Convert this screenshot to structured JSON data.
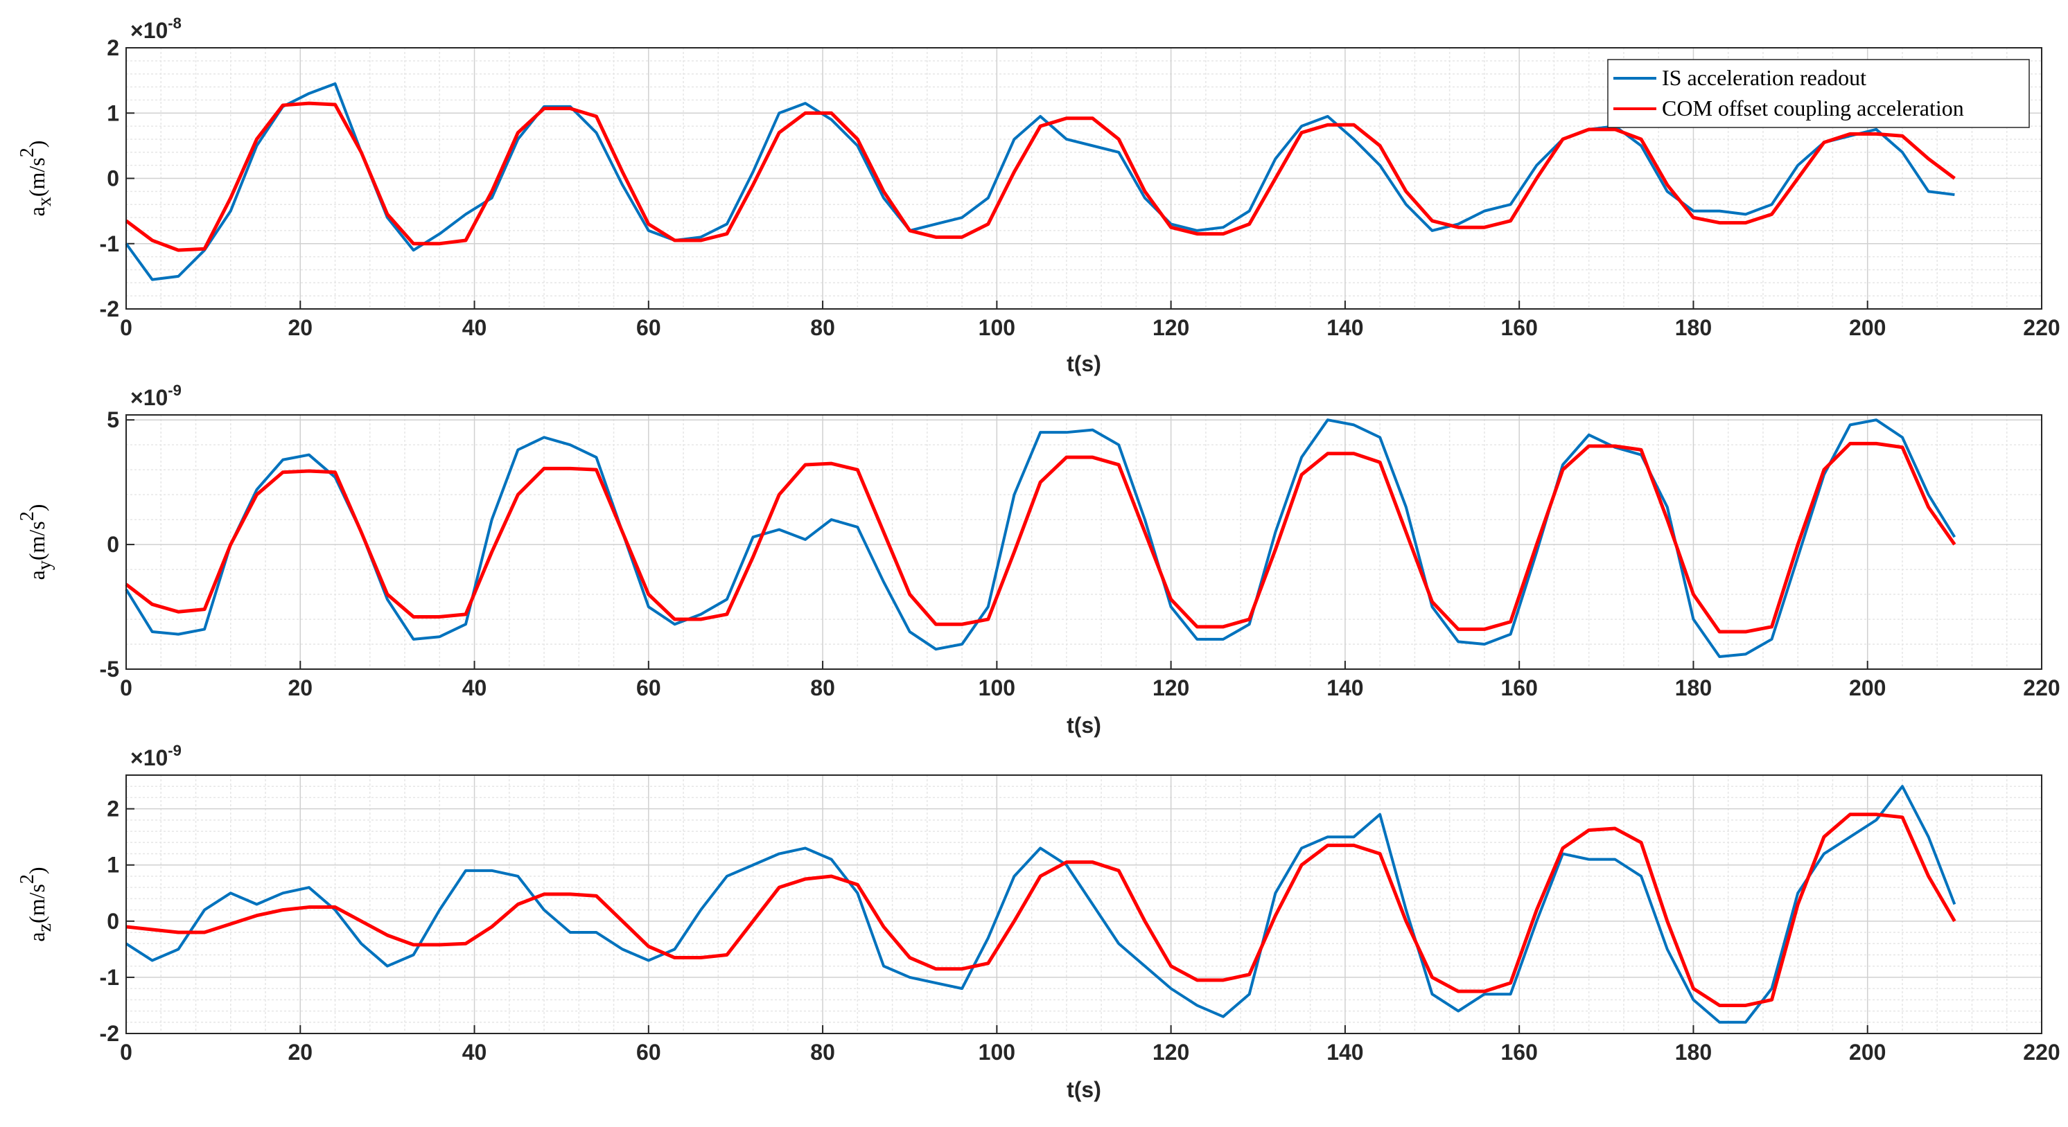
{
  "chart_data": [
    {
      "type": "line",
      "ylabel": {
        "base": "a",
        "sub": "x",
        "unit": "(m/s",
        "power": "2",
        "close": ")"
      },
      "exponent_label": {
        "base": "×10",
        "power": "-8"
      },
      "xlabel": "t(s)",
      "legend": "northeast",
      "grid": true,
      "minor_grid": true,
      "xlim": [
        0,
        220
      ],
      "xticks": [
        0,
        20,
        40,
        60,
        80,
        100,
        120,
        140,
        160,
        180,
        200,
        220
      ],
      "minor_xticks": [
        4,
        8,
        12,
        16,
        24,
        28,
        32,
        36,
        44,
        48,
        52,
        56,
        64,
        68,
        72,
        76,
        84,
        88,
        92,
        96,
        104,
        108,
        112,
        116,
        124,
        128,
        132,
        136,
        144,
        148,
        152,
        156,
        164,
        168,
        172,
        176,
        184,
        188,
        192,
        196,
        204,
        208,
        212,
        216
      ],
      "ylim": [
        -2,
        2
      ],
      "yticks": [
        -2,
        -1,
        0,
        1,
        2
      ],
      "minor_yticks": [
        -1.8,
        -1.6,
        -1.4,
        -1.2,
        -0.8,
        -0.6,
        -0.4,
        -0.2,
        0.2,
        0.4,
        0.6,
        0.8,
        1.2,
        1.4,
        1.6,
        1.8
      ],
      "x": [
        0,
        3,
        6,
        9,
        12,
        15,
        18,
        21,
        24,
        27,
        30,
        33,
        36,
        39,
        42,
        45,
        48,
        51,
        54,
        57,
        60,
        63,
        66,
        69,
        72,
        75,
        78,
        81,
        84,
        87,
        90,
        93,
        96,
        99,
        102,
        105,
        108,
        111,
        114,
        117,
        120,
        123,
        126,
        129,
        132,
        135,
        138,
        141,
        144,
        147,
        150,
        153,
        156,
        159,
        162,
        165,
        168,
        171,
        174,
        177,
        180,
        183,
        186,
        189,
        192,
        195,
        198,
        201,
        204,
        207,
        210
      ],
      "series": [
        {
          "name": "IS acceleration readout",
          "color": "#0072BD",
          "values": [
            -1.0,
            -1.55,
            -1.5,
            -1.1,
            -0.5,
            0.5,
            1.1,
            1.3,
            1.45,
            0.4,
            -0.6,
            -1.1,
            -0.85,
            -0.55,
            -0.3,
            0.6,
            1.1,
            1.1,
            0.7,
            -0.1,
            -0.8,
            -0.95,
            -0.9,
            -0.7,
            0.1,
            1.0,
            1.15,
            0.9,
            0.5,
            -0.3,
            -0.8,
            -0.7,
            -0.6,
            -0.3,
            0.6,
            0.95,
            0.6,
            0.5,
            0.4,
            -0.3,
            -0.7,
            -0.8,
            -0.75,
            -0.5,
            0.3,
            0.8,
            0.95,
            0.6,
            0.2,
            -0.4,
            -0.8,
            -0.7,
            -0.5,
            -0.4,
            0.2,
            0.6,
            0.75,
            0.8,
            0.5,
            -0.2,
            -0.5,
            -0.5,
            -0.55,
            -0.4,
            0.2,
            0.55,
            0.65,
            0.75,
            0.4,
            -0.2,
            -0.25
          ]
        },
        {
          "name": "COM offset coupling acceleration",
          "color": "#FF0000",
          "values": [
            -0.65,
            -0.95,
            -1.1,
            -1.08,
            -0.3,
            0.6,
            1.12,
            1.15,
            1.13,
            0.4,
            -0.55,
            -1.0,
            -1.0,
            -0.95,
            -0.2,
            0.7,
            1.07,
            1.07,
            0.95,
            0.1,
            -0.7,
            -0.95,
            -0.95,
            -0.85,
            -0.1,
            0.7,
            1.0,
            1.0,
            0.6,
            -0.2,
            -0.8,
            -0.9,
            -0.9,
            -0.7,
            0.1,
            0.8,
            0.92,
            0.92,
            0.6,
            -0.2,
            -0.75,
            -0.85,
            -0.85,
            -0.7,
            0.0,
            0.7,
            0.82,
            0.82,
            0.5,
            -0.2,
            -0.65,
            -0.75,
            -0.75,
            -0.65,
            0.0,
            0.6,
            0.75,
            0.75,
            0.6,
            -0.1,
            -0.6,
            -0.68,
            -0.68,
            -0.55,
            0.0,
            0.55,
            0.68,
            0.68,
            0.65,
            0.3,
            0.0
          ]
        }
      ]
    },
    {
      "type": "line",
      "ylabel": {
        "base": "a",
        "sub": "y",
        "unit": "(m/s",
        "power": "2",
        "close": ")"
      },
      "exponent_label": {
        "base": "×10",
        "power": "-9"
      },
      "xlabel": "t(s)",
      "grid": true,
      "minor_grid": true,
      "xlim": [
        0,
        220
      ],
      "xticks": [
        0,
        20,
        40,
        60,
        80,
        100,
        120,
        140,
        160,
        180,
        200,
        220
      ],
      "minor_xticks": [
        4,
        8,
        12,
        16,
        24,
        28,
        32,
        36,
        44,
        48,
        52,
        56,
        64,
        68,
        72,
        76,
        84,
        88,
        92,
        96,
        104,
        108,
        112,
        116,
        124,
        128,
        132,
        136,
        144,
        148,
        152,
        156,
        164,
        168,
        172,
        176,
        184,
        188,
        192,
        196,
        204,
        208,
        212,
        216
      ],
      "ylim": [
        -5,
        5.2
      ],
      "yticks": [
        -5,
        0,
        5
      ],
      "minor_yticks": [
        -4,
        -3,
        -2,
        -1,
        1,
        2,
        3,
        4
      ],
      "x": [
        0,
        3,
        6,
        9,
        12,
        15,
        18,
        21,
        24,
        27,
        30,
        33,
        36,
        39,
        42,
        45,
        48,
        51,
        54,
        57,
        60,
        63,
        66,
        69,
        72,
        75,
        78,
        81,
        84,
        87,
        90,
        93,
        96,
        99,
        102,
        105,
        108,
        111,
        114,
        117,
        120,
        123,
        126,
        129,
        132,
        135,
        138,
        141,
        144,
        147,
        150,
        153,
        156,
        159,
        162,
        165,
        168,
        171,
        174,
        177,
        180,
        183,
        186,
        189,
        192,
        195,
        198,
        201,
        204,
        207,
        210
      ],
      "series": [
        {
          "color": "#0072BD",
          "values": [
            -1.8,
            -3.5,
            -3.6,
            -3.4,
            0.0,
            2.2,
            3.4,
            3.6,
            2.7,
            0.5,
            -2.2,
            -3.8,
            -3.7,
            -3.2,
            1.0,
            3.8,
            4.3,
            4.0,
            3.5,
            0.5,
            -2.5,
            -3.2,
            -2.8,
            -2.2,
            0.3,
            0.6,
            0.2,
            1.0,
            0.7,
            -1.5,
            -3.5,
            -4.2,
            -4.0,
            -2.5,
            2.0,
            4.5,
            4.5,
            4.6,
            4.0,
            1.0,
            -2.5,
            -3.8,
            -3.8,
            -3.2,
            0.5,
            3.5,
            5.0,
            4.8,
            4.3,
            1.5,
            -2.5,
            -3.9,
            -4.0,
            -3.6,
            -0.3,
            3.2,
            4.4,
            3.9,
            3.6,
            1.5,
            -3.0,
            -4.5,
            -4.4,
            -3.8,
            -0.5,
            2.8,
            4.8,
            5.0,
            4.3,
            2.0,
            0.3
          ]
        },
        {
          "color": "#FF0000",
          "values": [
            -1.6,
            -2.4,
            -2.7,
            -2.6,
            0.0,
            2.0,
            2.9,
            2.95,
            2.9,
            0.5,
            -2.0,
            -2.9,
            -2.9,
            -2.8,
            -0.3,
            2.0,
            3.05,
            3.05,
            3.0,
            0.5,
            -2.0,
            -3.0,
            -3.0,
            -2.8,
            -0.5,
            2.0,
            3.2,
            3.25,
            3.0,
            0.5,
            -2.0,
            -3.2,
            -3.2,
            -3.0,
            -0.3,
            2.5,
            3.5,
            3.5,
            3.2,
            0.5,
            -2.2,
            -3.3,
            -3.3,
            -3.0,
            -0.2,
            2.8,
            3.65,
            3.65,
            3.3,
            0.5,
            -2.3,
            -3.4,
            -3.4,
            -3.1,
            0.0,
            3.0,
            3.95,
            3.95,
            3.8,
            1.0,
            -2.0,
            -3.5,
            -3.5,
            -3.3,
            0.0,
            3.0,
            4.05,
            4.05,
            3.9,
            1.5,
            0.0
          ]
        }
      ]
    },
    {
      "type": "line",
      "ylabel": {
        "base": "a",
        "sub": "z",
        "unit": "(m/s",
        "power": "2",
        "close": ")"
      },
      "exponent_label": {
        "base": "×10",
        "power": "-9"
      },
      "xlabel": "t(s)",
      "grid": true,
      "minor_grid": true,
      "xlim": [
        0,
        220
      ],
      "xticks": [
        0,
        20,
        40,
        60,
        80,
        100,
        120,
        140,
        160,
        180,
        200,
        220
      ],
      "minor_xticks": [
        4,
        8,
        12,
        16,
        24,
        28,
        32,
        36,
        44,
        48,
        52,
        56,
        64,
        68,
        72,
        76,
        84,
        88,
        92,
        96,
        104,
        108,
        112,
        116,
        124,
        128,
        132,
        136,
        144,
        148,
        152,
        156,
        164,
        168,
        172,
        176,
        184,
        188,
        192,
        196,
        204,
        208,
        212,
        216
      ],
      "ylim": [
        -2,
        2.6
      ],
      "yticks": [
        -2,
        -1,
        0,
        1,
        2
      ],
      "minor_yticks": [
        -1.8,
        -1.6,
        -1.4,
        -1.2,
        -0.8,
        -0.6,
        -0.4,
        -0.2,
        0.2,
        0.4,
        0.6,
        0.8,
        1.2,
        1.4,
        1.6,
        1.8,
        2.2,
        2.4
      ],
      "x": [
        0,
        3,
        6,
        9,
        12,
        15,
        18,
        21,
        24,
        27,
        30,
        33,
        36,
        39,
        42,
        45,
        48,
        51,
        54,
        57,
        60,
        63,
        66,
        69,
        72,
        75,
        78,
        81,
        84,
        87,
        90,
        93,
        96,
        99,
        102,
        105,
        108,
        111,
        114,
        117,
        120,
        123,
        126,
        129,
        132,
        135,
        138,
        141,
        144,
        147,
        150,
        153,
        156,
        159,
        162,
        165,
        168,
        171,
        174,
        177,
        180,
        183,
        186,
        189,
        192,
        195,
        198,
        201,
        204,
        207,
        210
      ],
      "series": [
        {
          "color": "#0072BD",
          "values": [
            -0.4,
            -0.7,
            -0.5,
            0.2,
            0.5,
            0.3,
            0.5,
            0.6,
            0.2,
            -0.4,
            -0.8,
            -0.6,
            0.2,
            0.9,
            0.9,
            0.8,
            0.2,
            -0.2,
            -0.2,
            -0.5,
            -0.7,
            -0.5,
            0.2,
            0.8,
            1.0,
            1.2,
            1.3,
            1.1,
            0.5,
            -0.8,
            -1.0,
            -1.1,
            -1.2,
            -0.3,
            0.8,
            1.3,
            1.0,
            0.3,
            -0.4,
            -0.8,
            -1.2,
            -1.5,
            -1.7,
            -1.3,
            0.5,
            1.3,
            1.5,
            1.5,
            1.9,
            0.2,
            -1.3,
            -1.6,
            -1.3,
            -1.3,
            0.0,
            1.2,
            1.1,
            1.1,
            0.8,
            -0.5,
            -1.4,
            -1.8,
            -1.8,
            -1.2,
            0.5,
            1.2,
            1.5,
            1.8,
            2.4,
            1.5,
            0.3
          ]
        },
        {
          "color": "#FF0000",
          "values": [
            -0.1,
            -0.15,
            -0.2,
            -0.2,
            -0.05,
            0.1,
            0.2,
            0.25,
            0.25,
            0.0,
            -0.25,
            -0.42,
            -0.42,
            -0.4,
            -0.1,
            0.3,
            0.48,
            0.48,
            0.45,
            0.0,
            -0.45,
            -0.65,
            -0.65,
            -0.6,
            0.0,
            0.6,
            0.75,
            0.8,
            0.65,
            -0.1,
            -0.65,
            -0.85,
            -0.85,
            -0.75,
            0.0,
            0.8,
            1.05,
            1.05,
            0.9,
            0.0,
            -0.8,
            -1.05,
            -1.05,
            -0.95,
            0.1,
            1.0,
            1.35,
            1.35,
            1.2,
            0.0,
            -1.0,
            -1.25,
            -1.25,
            -1.1,
            0.2,
            1.3,
            1.62,
            1.65,
            1.4,
            0.0,
            -1.2,
            -1.5,
            -1.5,
            -1.4,
            0.3,
            1.5,
            1.9,
            1.9,
            1.85,
            0.8,
            0.0
          ]
        }
      ]
    }
  ]
}
